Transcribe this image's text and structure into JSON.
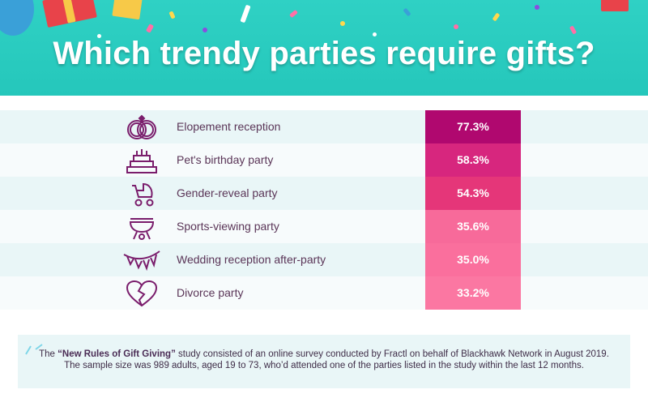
{
  "title": "Which trendy parties require gifts?",
  "chart_data": {
    "type": "bar",
    "title": "Which trendy parties require gifts?",
    "categories": [
      "Elopement reception",
      "Pet's birthday party",
      "Gender-reveal party",
      "Sports-viewing party",
      "Wedding reception after-party",
      "Divorce party"
    ],
    "values": [
      77.3,
      58.3,
      54.3,
      35.6,
      35.0,
      33.2
    ],
    "value_labels": [
      "77.3%",
      "58.3%",
      "54.3%",
      "35.6%",
      "35.0%",
      "33.2%"
    ],
    "bar_colors": [
      "#b0086f",
      "#d7267e",
      "#e53679",
      "#f76a9a",
      "#fa6f9d",
      "#fb77a2"
    ],
    "icons": [
      "rings-icon",
      "cake-icon",
      "stroller-icon",
      "grill-icon",
      "bunting-icon",
      "broken-heart-icon"
    ],
    "xlabel": "",
    "ylabel": "",
    "grid": false,
    "legend": "none"
  },
  "footnote": {
    "prefix": "The",
    "study_name": "“New Rules of Gift Giving”",
    "body": "study consisted of an online survey conducted by Fractl on behalf of Blackhawk Network in August 2019. The sample size was 989 adults, aged 19 to 73, who’d attended one of the parties listed in the study within the last 12 months."
  },
  "colors": {
    "header_bg": "#2fd1c4",
    "icon": "#7a1d6c",
    "label_text": "#5a3557",
    "row_tint": "#e9f6f7"
  }
}
